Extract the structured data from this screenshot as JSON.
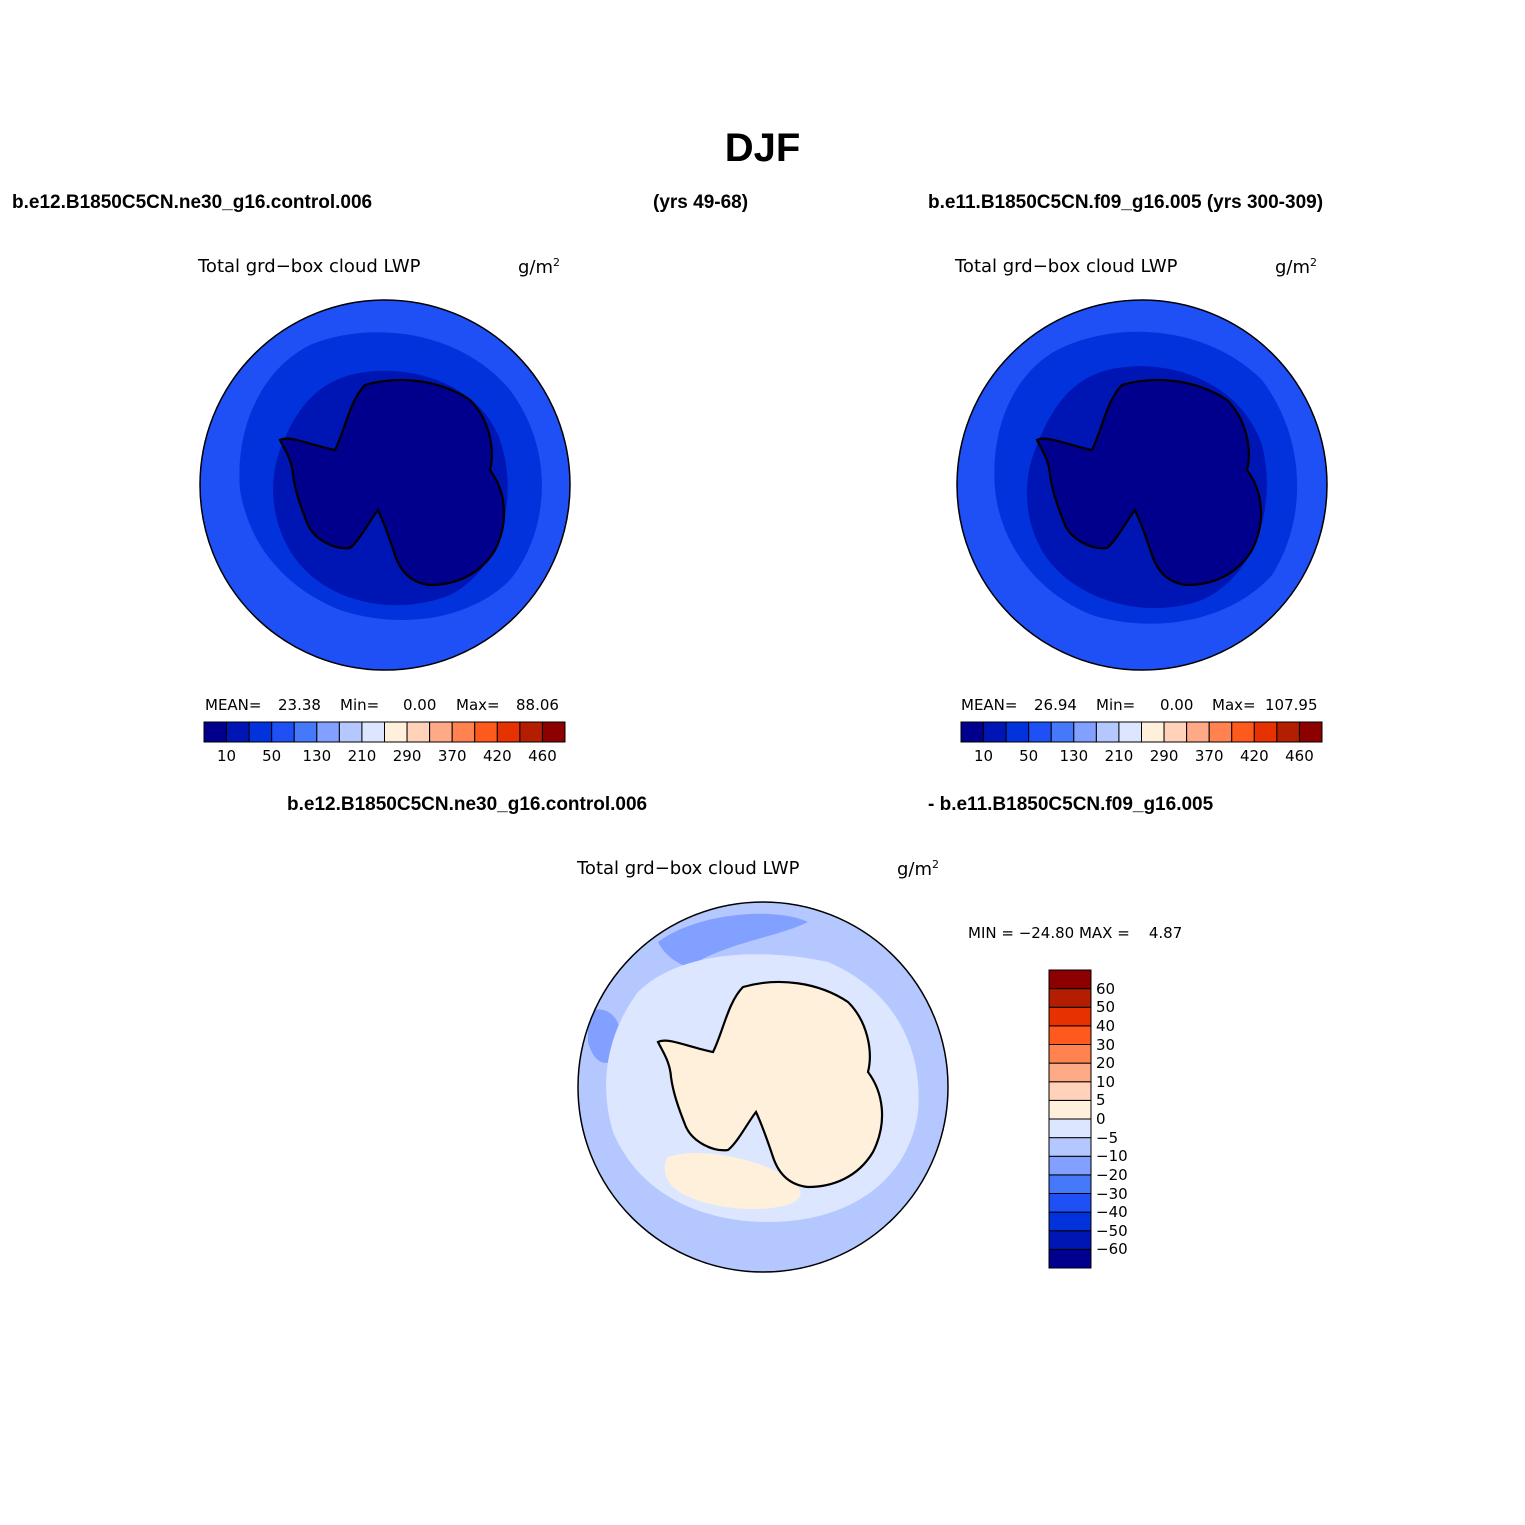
{
  "title": "DJF",
  "case1": "b.e12.B1850C5CN.ne30_g16.control.006",
  "case1_years": "(yrs 49-68)",
  "case2": "b.e11.B1850C5CN.f09_g16.005 (yrs 300-309)",
  "diff_case1": "b.e12.B1850C5CN.ne30_g16.control.006",
  "diff_case2": "- b.e11.B1850C5CN.f09_g16.005",
  "variable": "Total grd−box cloud LWP",
  "units": "g/m",
  "units_sup": "2",
  "panels": [
    {
      "mean_label": "MEAN=",
      "mean": "23.38",
      "min_label": "Min=",
      "min": "0.00",
      "max_label": "Max=",
      "max": "88.06"
    },
    {
      "mean_label": "MEAN=",
      "mean": "26.94",
      "min_label": "Min=",
      "min": "0.00",
      "max_label": "Max=",
      "max": "107.95"
    }
  ],
  "diff_stats": "MIN = −24.80 MAX =    4.87",
  "colorbar_top": {
    "colors": [
      "#00008c",
      "#0016b4",
      "#0232dc",
      "#1e50f5",
      "#4678fa",
      "#82a0ff",
      "#b4c8ff",
      "#dce6ff",
      "#fff0dc",
      "#ffd2b9",
      "#ffaa87",
      "#ff8250",
      "#ff5a1e",
      "#e63200",
      "#b41e00",
      "#8c0000"
    ],
    "labels": [
      "10",
      "50",
      "130",
      "210",
      "290",
      "370",
      "420",
      "460"
    ]
  },
  "colorbar_diff": {
    "colors": [
      "#00008c",
      "#0016b4",
      "#0232dc",
      "#1e50f5",
      "#4678fa",
      "#82a0ff",
      "#b4c8ff",
      "#dce6ff",
      "#fff0dc",
      "#ffd2b9",
      "#ffaa87",
      "#ff8250",
      "#ff5a1e",
      "#e63200",
      "#b41e00",
      "#8c0000"
    ],
    "labels": [
      "60",
      "50",
      "40",
      "30",
      "20",
      "10",
      "5",
      "0",
      "−5",
      "−10",
      "−20",
      "−30",
      "−40",
      "−50",
      "−60"
    ]
  },
  "map_colors": {
    "ring_outer": "#1e50f5",
    "ring_mid": "#0232dc",
    "ring_inner": "#0016b4",
    "continent": "#00008c",
    "diff_outer": "#b4c8ff",
    "diff_mid": "#dce6ff",
    "diff_patch": "#82a0ff",
    "diff_land": "#fff0dc"
  }
}
